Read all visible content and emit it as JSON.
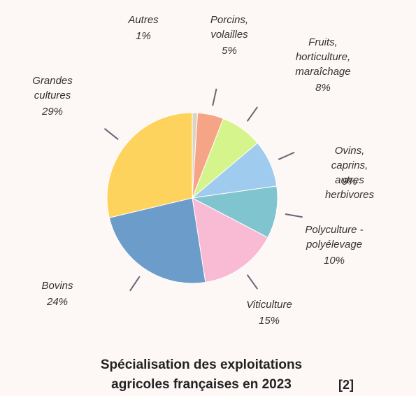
{
  "chart_data": {
    "type": "pie",
    "title": "Spécialisation des exploitations\nagricoles françaises en 2023",
    "reference": "[2]",
    "categories": [
      "Autres",
      "Porcins,\nvolailles",
      "Fruits,\nhorticulture,\nmaraîchage",
      "Ovins, caprins,\nautres herbivores",
      "Polyculture -\npolyélevage",
      "Viticulture",
      "Bovins",
      "Grandes\ncultures"
    ],
    "values": [
      1,
      5,
      8,
      9,
      10,
      15,
      24,
      29
    ],
    "value_labels": [
      "1%",
      "5%",
      "8%",
      "9%",
      "10%",
      "15%",
      "24%",
      "29%"
    ],
    "colors": [
      "#dcd3c4",
      "#f5a585",
      "#d6f48c",
      "#9fcbef",
      "#80c4cf",
      "#f9bad4",
      "#6c9cc9",
      "#fdd35e"
    ]
  }
}
